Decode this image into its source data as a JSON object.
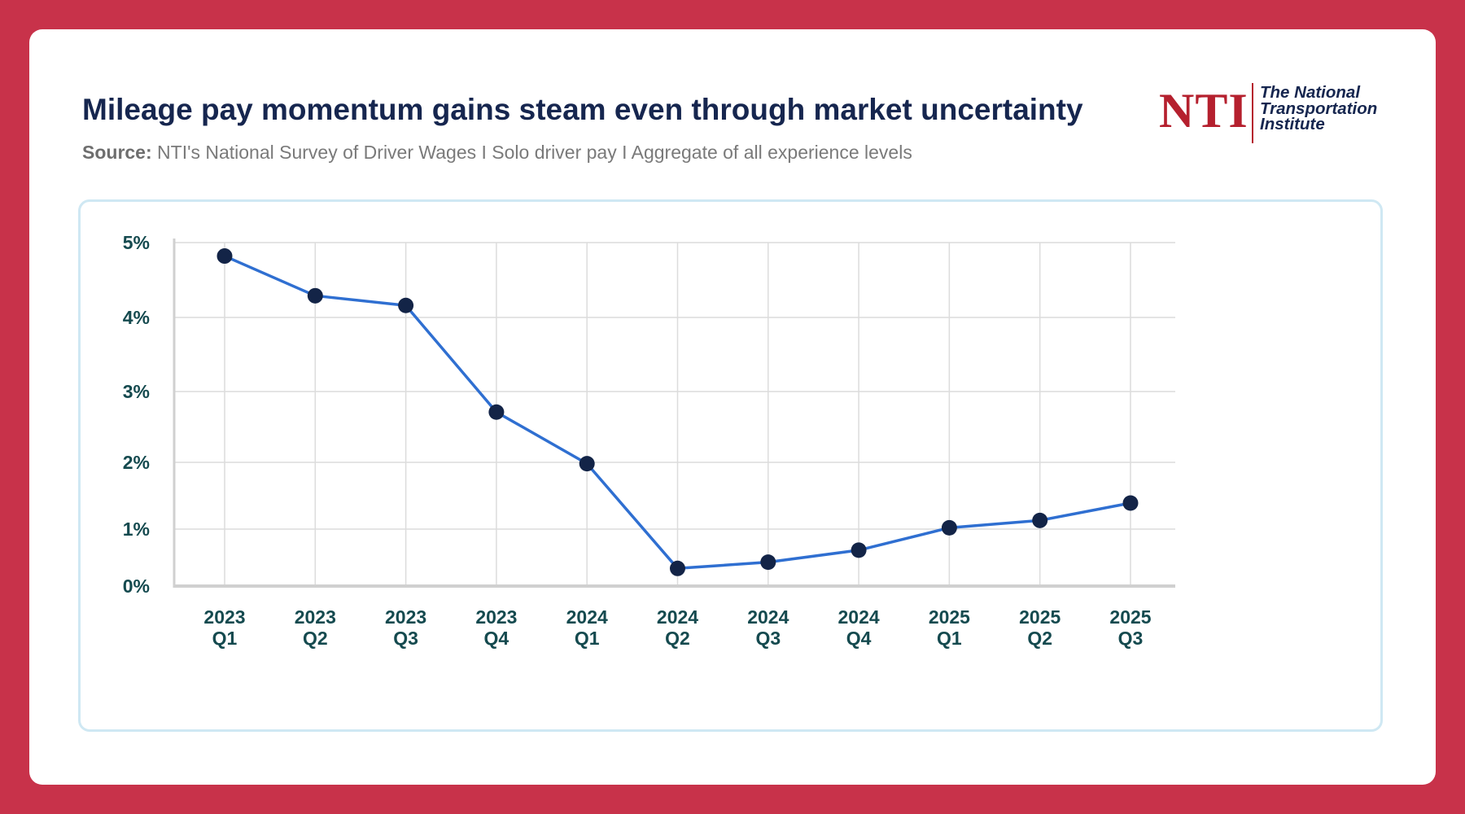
{
  "header": {
    "title": "Mileage pay momentum gains steam even through market uncertainty",
    "source_label": "Source:",
    "source_text": " NTI's National Survey of Driver Wages I Solo driver pay I Aggregate of all experience levels"
  },
  "logo": {
    "mark": "NTI",
    "line1": "The National",
    "line2": "Transportation",
    "line3": "Institute"
  },
  "colors": {
    "background": "#c8324a",
    "line": "#2f6fd1",
    "marker": "#132447",
    "title": "#16264f",
    "tick": "#154a4f",
    "logo_red": "#b5202e"
  },
  "chart_data": {
    "type": "line",
    "title": "Mileage pay momentum gains steam even through market uncertainty",
    "xlabel": "",
    "ylabel": "",
    "categories": [
      [
        "2023",
        "Q1"
      ],
      [
        "2023",
        "Q2"
      ],
      [
        "2023",
        "Q3"
      ],
      [
        "2023",
        "Q4"
      ],
      [
        "2024",
        "Q1"
      ],
      [
        "2024",
        "Q2"
      ],
      [
        "2024",
        "Q3"
      ],
      [
        "2024",
        "Q4"
      ],
      [
        "2025",
        "Q1"
      ],
      [
        "2025",
        "Q2"
      ],
      [
        "2025",
        "Q3"
      ]
    ],
    "values": [
      4.82,
      4.29,
      4.16,
      2.71,
      1.98,
      0.31,
      0.42,
      0.63,
      1.02,
      1.13,
      1.39
    ],
    "ylim": [
      0,
      5
    ],
    "y_ticks": [
      0,
      1,
      2,
      3,
      4,
      5
    ],
    "y_tick_labels": [
      "0%",
      "1%",
      "2%",
      "3%",
      "4%",
      "5%"
    ],
    "grid": true,
    "legend": "none"
  }
}
